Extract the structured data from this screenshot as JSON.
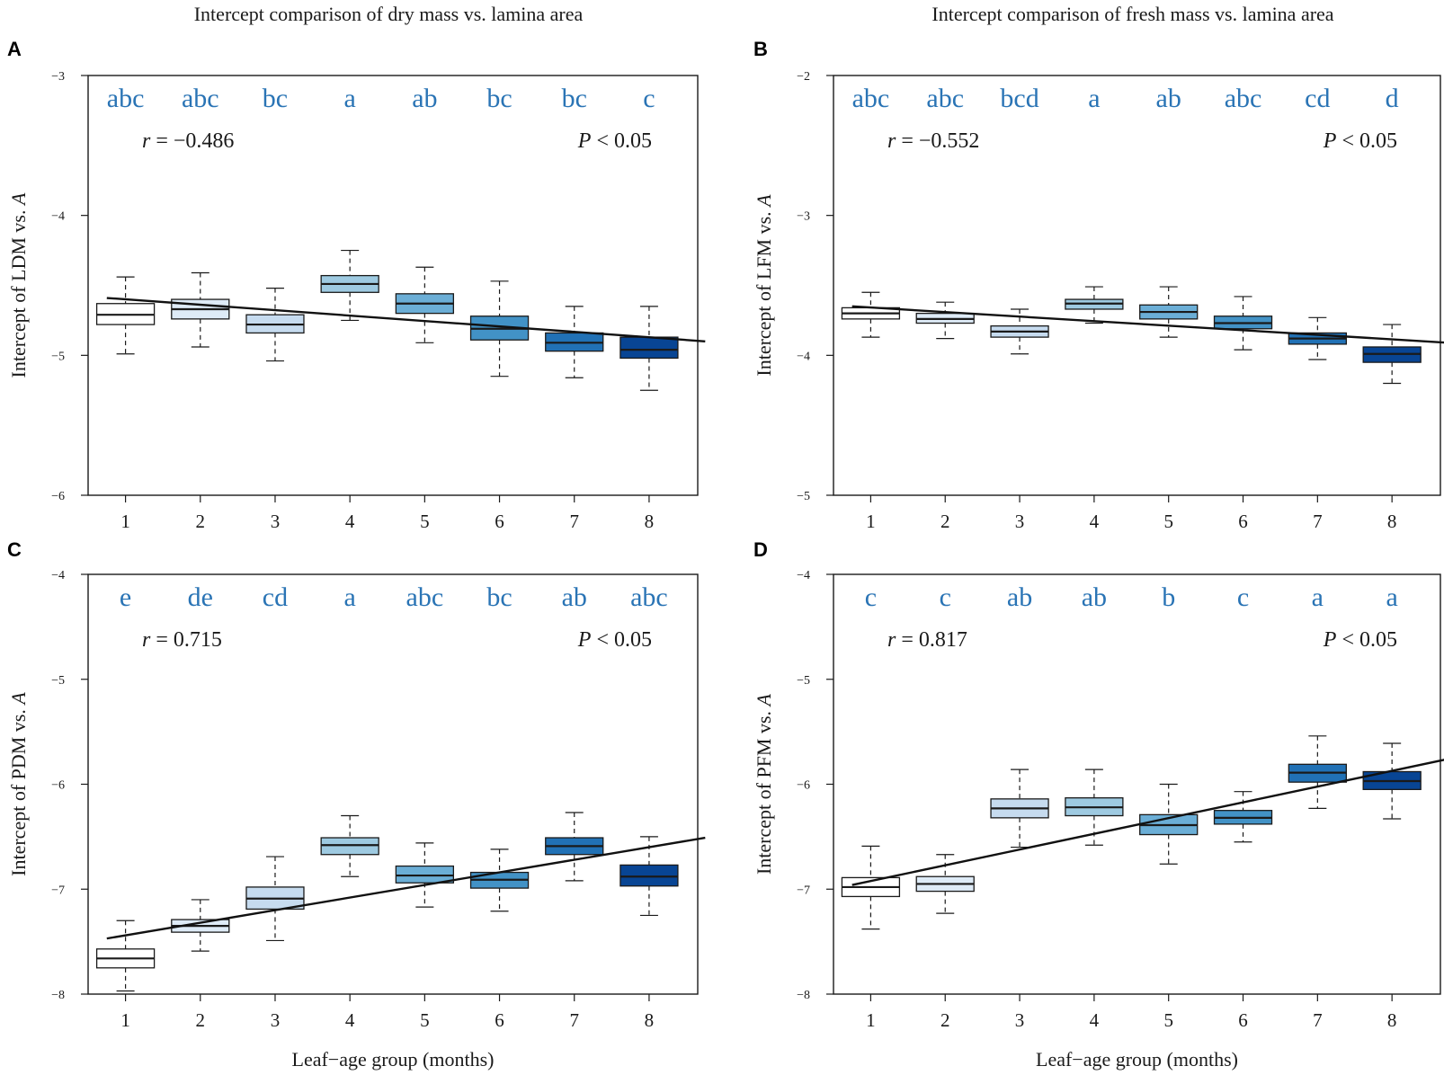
{
  "column_titles": [
    "Intercept comparison of dry mass vs. lamina area",
    "Intercept comparison of fresh mass vs. lamina area"
  ],
  "colors": {
    "box_fills": [
      "#ffffff",
      "#deebf7",
      "#c6dbef",
      "#9ecae1",
      "#6baed6",
      "#4292c6",
      "#2171b5",
      "#084594"
    ],
    "letters": "#2a74b5",
    "axis": "#1a1a1a"
  },
  "chart_data": [
    {
      "panel": "A",
      "type": "box",
      "title": "Intercept comparison of dry mass vs. lamina area",
      "ylabel_prefix": "Intercept of LDM vs. ",
      "ylabel_italic": "A",
      "xlabel": "",
      "categories": [
        "1",
        "2",
        "3",
        "4",
        "5",
        "6",
        "7",
        "8"
      ],
      "ylim": [
        -6,
        -3
      ],
      "yticks": [
        "-3",
        "-4",
        "-5",
        "-6"
      ],
      "letters": [
        "abc",
        "abc",
        "bc",
        "a",
        "ab",
        "bc",
        "bc",
        "c"
      ],
      "r_label": "r",
      "r_value": " = −0.486",
      "p_label": "P",
      "p_value": " < 0.05",
      "boxes": [
        {
          "min": -4.99,
          "q1": -4.78,
          "median": -4.71,
          "q3": -4.63,
          "max": -4.44
        },
        {
          "min": -4.94,
          "q1": -4.74,
          "median": -4.67,
          "q3": -4.6,
          "max": -4.41
        },
        {
          "min": -5.04,
          "q1": -4.84,
          "median": -4.78,
          "q3": -4.71,
          "max": -4.52
        },
        {
          "min": -4.75,
          "q1": -4.55,
          "median": -4.49,
          "q3": -4.43,
          "max": -4.25
        },
        {
          "min": -4.91,
          "q1": -4.7,
          "median": -4.63,
          "q3": -4.56,
          "max": -4.37
        },
        {
          "min": -5.15,
          "q1": -4.89,
          "median": -4.81,
          "q3": -4.72,
          "max": -4.47
        },
        {
          "min": -5.16,
          "q1": -4.97,
          "median": -4.91,
          "q3": -4.84,
          "max": -4.65
        },
        {
          "min": -5.25,
          "q1": -5.02,
          "median": -4.96,
          "q3": -4.87,
          "max": -4.65
        }
      ],
      "fit_line": {
        "x": [
          0.75,
          8.75
        ],
        "y": [
          -4.59,
          -4.9
        ]
      }
    },
    {
      "panel": "B",
      "type": "box",
      "title": "Intercept comparison of fresh mass vs. lamina area",
      "ylabel_prefix": "Intercept of LFM vs. ",
      "ylabel_italic": "A",
      "xlabel": "",
      "categories": [
        "1",
        "2",
        "3",
        "4",
        "5",
        "6",
        "7",
        "8"
      ],
      "ylim": [
        -5,
        -2
      ],
      "yticks": [
        "-2",
        "-3",
        "-4",
        "-5"
      ],
      "letters": [
        "abc",
        "abc",
        "bcd",
        "a",
        "ab",
        "abc",
        "cd",
        "d"
      ],
      "r_label": "r",
      "r_value": " = −0.552",
      "p_label": "P",
      "p_value": " < 0.05",
      "boxes": [
        {
          "min": -3.87,
          "q1": -3.74,
          "median": -3.7,
          "q3": -3.66,
          "max": -3.55
        },
        {
          "min": -3.88,
          "q1": -3.77,
          "median": -3.74,
          "q3": -3.7,
          "max": -3.62
        },
        {
          "min": -3.99,
          "q1": -3.87,
          "median": -3.83,
          "q3": -3.79,
          "max": -3.67
        },
        {
          "min": -3.77,
          "q1": -3.67,
          "median": -3.63,
          "q3": -3.6,
          "max": -3.51
        },
        {
          "min": -3.87,
          "q1": -3.74,
          "median": -3.69,
          "q3": -3.64,
          "max": -3.51
        },
        {
          "min": -3.96,
          "q1": -3.81,
          "median": -3.77,
          "q3": -3.72,
          "max": -3.58
        },
        {
          "min": -4.03,
          "q1": -3.92,
          "median": -3.88,
          "q3": -3.84,
          "max": -3.73
        },
        {
          "min": -4.2,
          "q1": -4.05,
          "median": -3.99,
          "q3": -3.94,
          "max": -3.78
        }
      ],
      "fit_line": {
        "x": [
          0.75,
          8.75
        ],
        "y": [
          -3.65,
          -3.91
        ]
      }
    },
    {
      "panel": "C",
      "type": "box",
      "title": "",
      "ylabel_prefix": "Intercept of PDM vs. ",
      "ylabel_italic": "A",
      "xlabel": "Leaf−age group (months)",
      "categories": [
        "1",
        "2",
        "3",
        "4",
        "5",
        "6",
        "7",
        "8"
      ],
      "ylim": [
        -8,
        -4
      ],
      "yticks": [
        "-4",
        "-5",
        "-6",
        "-7",
        "-8"
      ],
      "letters": [
        "e",
        "de",
        "cd",
        "a",
        "abc",
        "bc",
        "ab",
        "abc"
      ],
      "r_label": "r",
      "r_value": " = 0.715",
      "p_label": "P",
      "p_value": " < 0.05",
      "boxes": [
        {
          "min": -7.97,
          "q1": -7.75,
          "median": -7.66,
          "q3": -7.57,
          "max": -7.3
        },
        {
          "min": -7.59,
          "q1": -7.41,
          "median": -7.35,
          "q3": -7.29,
          "max": -7.1
        },
        {
          "min": -7.49,
          "q1": -7.19,
          "median": -7.09,
          "q3": -6.98,
          "max": -6.69
        },
        {
          "min": -6.88,
          "q1": -6.67,
          "median": -6.58,
          "q3": -6.51,
          "max": -6.3
        },
        {
          "min": -7.17,
          "q1": -6.94,
          "median": -6.87,
          "q3": -6.78,
          "max": -6.56
        },
        {
          "min": -7.21,
          "q1": -6.99,
          "median": -6.91,
          "q3": -6.84,
          "max": -6.62
        },
        {
          "min": -6.92,
          "q1": -6.67,
          "median": -6.59,
          "q3": -6.51,
          "max": -6.27
        },
        {
          "min": -7.25,
          "q1": -6.97,
          "median": -6.88,
          "q3": -6.77,
          "max": -6.5
        }
      ],
      "fit_line": {
        "x": [
          0.75,
          8.75
        ],
        "y": [
          -7.47,
          -6.51
        ]
      }
    },
    {
      "panel": "D",
      "type": "box",
      "title": "",
      "ylabel_prefix": "Intercept of PFM vs. ",
      "ylabel_italic": "A",
      "xlabel": "Leaf−age group (months)",
      "categories": [
        "1",
        "2",
        "3",
        "4",
        "5",
        "6",
        "7",
        "8"
      ],
      "ylim": [
        -8,
        -4
      ],
      "yticks": [
        "-4",
        "-5",
        "-6",
        "-7",
        "-8"
      ],
      "letters": [
        "c",
        "c",
        "ab",
        "ab",
        "b",
        "c",
        "a",
        "a"
      ],
      "r_label": "r",
      "r_value": " = 0.817",
      "p_label": "P",
      "p_value": " < 0.05",
      "boxes": [
        {
          "min": -7.38,
          "q1": -7.07,
          "median": -6.98,
          "q3": -6.89,
          "max": -6.59
        },
        {
          "min": -7.23,
          "q1": -7.02,
          "median": -6.95,
          "q3": -6.88,
          "max": -6.67
        },
        {
          "min": -6.6,
          "q1": -6.32,
          "median": -6.23,
          "q3": -6.14,
          "max": -5.86
        },
        {
          "min": -6.58,
          "q1": -6.3,
          "median": -6.22,
          "q3": -6.13,
          "max": -5.86
        },
        {
          "min": -6.76,
          "q1": -6.48,
          "median": -6.39,
          "q3": -6.29,
          "max": -6.0
        },
        {
          "min": -6.55,
          "q1": -6.38,
          "median": -6.32,
          "q3": -6.25,
          "max": -6.07
        },
        {
          "min": -6.23,
          "q1": -5.98,
          "median": -5.89,
          "q3": -5.81,
          "max": -5.54
        },
        {
          "min": -6.33,
          "q1": -6.05,
          "median": -5.97,
          "q3": -5.88,
          "max": -5.61
        }
      ],
      "fit_line": {
        "x": [
          0.75,
          8.75
        ],
        "y": [
          -6.96,
          -5.76
        ]
      }
    }
  ]
}
